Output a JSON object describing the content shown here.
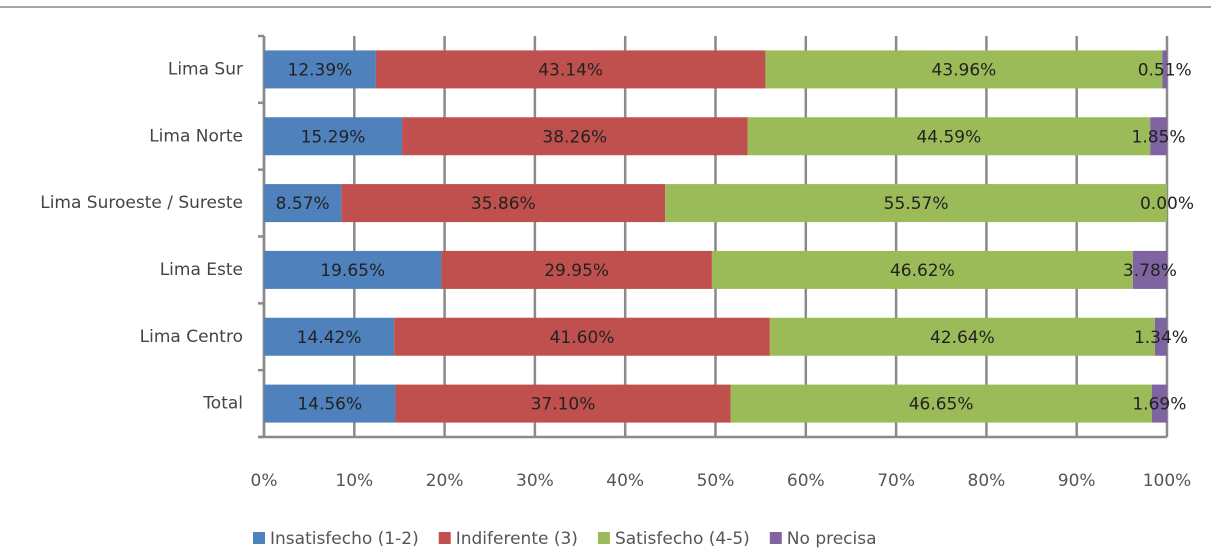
{
  "chart_data": {
    "type": "stacked-bar-horizontal",
    "categories": [
      "Lima Sur",
      "Lima Norte",
      "Lima Suroeste  / Sureste",
      "Lima Este",
      "Lima Centro",
      "Total"
    ],
    "series": [
      {
        "name": "Insatisfecho (1-2)",
        "color": "#4f81bd",
        "values": [
          12.39,
          15.29,
          8.57,
          19.65,
          14.42,
          14.56
        ],
        "value_labels": [
          "12.39%",
          "15.29%",
          "8.57%",
          "19.65%",
          "14.42%",
          "14.56%"
        ]
      },
      {
        "name": "Indiferente (3)",
        "color": "#c0504d",
        "values": [
          43.14,
          38.26,
          35.86,
          29.95,
          41.6,
          37.1
        ],
        "value_labels": [
          "43.14%",
          "38.26%",
          "35.86%",
          "29.95%",
          "41.60%",
          "37.10%"
        ]
      },
      {
        "name": "Satisfecho (4-5)",
        "color": "#9bbb59",
        "values": [
          43.96,
          44.59,
          55.57,
          46.62,
          42.64,
          46.65
        ],
        "value_labels": [
          "43.96%",
          "44.59%",
          "55.57%",
          "46.62%",
          "42.64%",
          "46.65%"
        ]
      },
      {
        "name": "No precisa",
        "color": "#8064a2",
        "values": [
          0.51,
          1.85,
          0,
          3.78,
          1.34,
          1.69
        ],
        "value_labels": [
          "0.51%",
          "1.85%",
          "0.00%",
          "3.78%",
          "1.34%",
          "1.69%"
        ]
      }
    ],
    "xlim": [
      0,
      100
    ],
    "xticks": [
      {
        "value": 0,
        "label": "0%"
      },
      {
        "value": 10,
        "label": "10%"
      },
      {
        "value": 20,
        "label": "20%"
      },
      {
        "value": 30,
        "label": "30%"
      },
      {
        "value": 40,
        "label": "40%"
      },
      {
        "value": 50,
        "label": "50%"
      },
      {
        "value": 60,
        "label": "60%"
      },
      {
        "value": 70,
        "label": "70%"
      },
      {
        "value": 80,
        "label": "80%"
      },
      {
        "value": 90,
        "label": "90%"
      },
      {
        "value": 100,
        "label": "100%"
      }
    ],
    "grid": true,
    "legend": "bottom"
  }
}
